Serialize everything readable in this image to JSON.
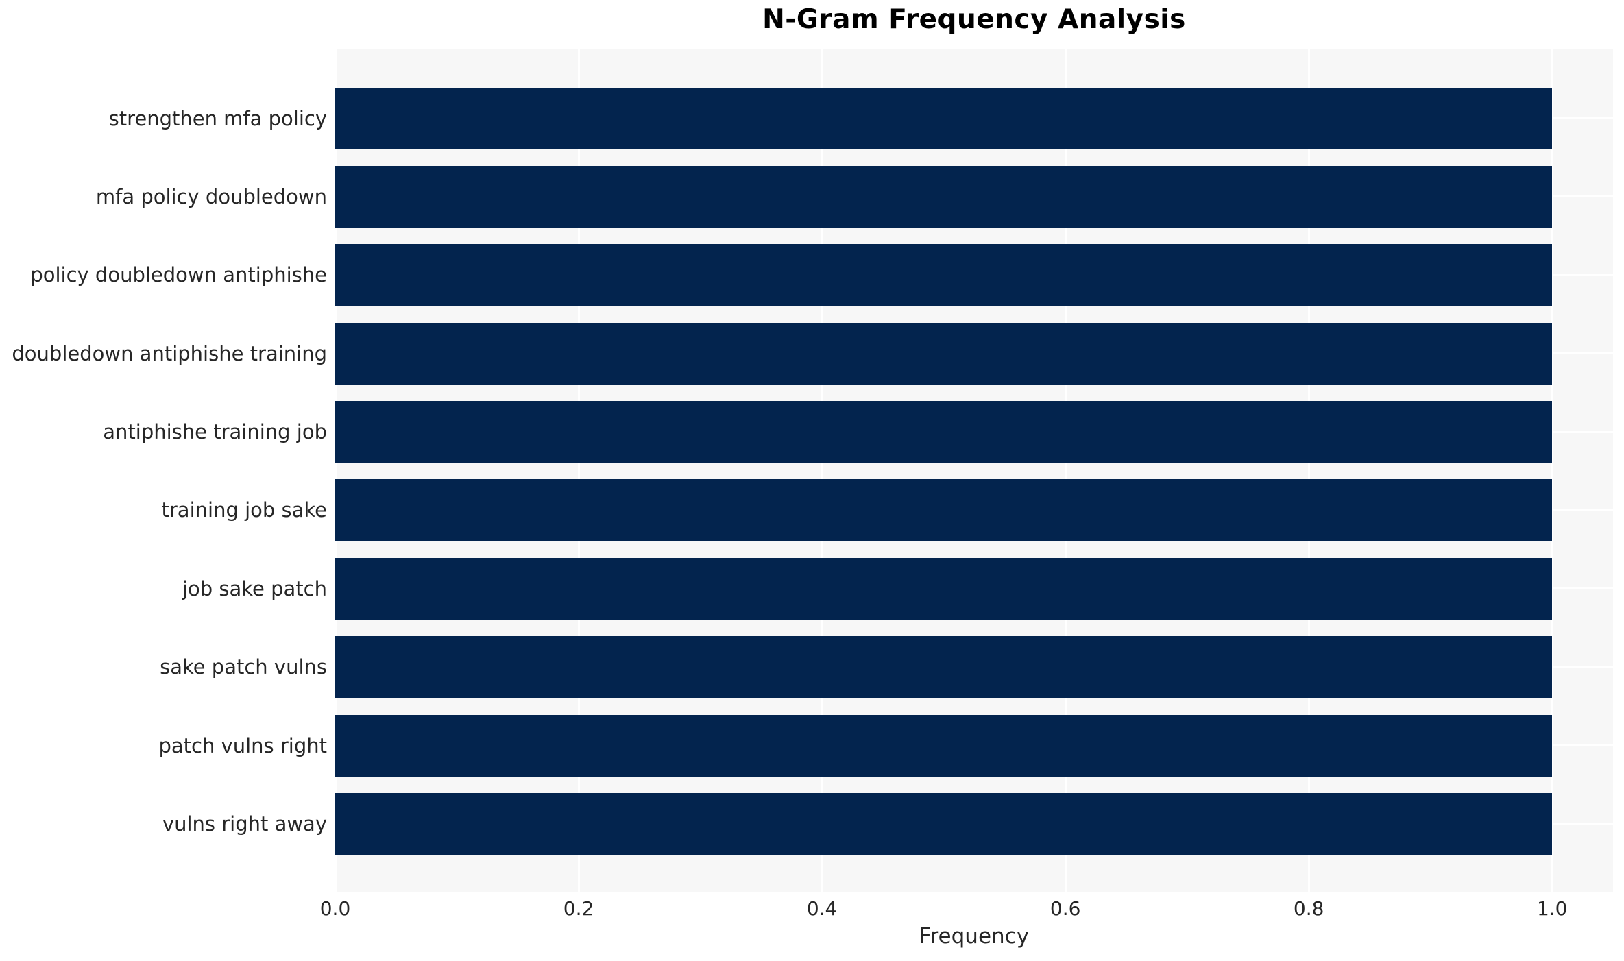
{
  "chart_data": {
    "type": "bar",
    "orientation": "horizontal",
    "title": "N-Gram Frequency Analysis",
    "xlabel": "Frequency",
    "ylabel": "",
    "categories": [
      "strengthen mfa policy",
      "mfa policy doubledown",
      "policy doubledown antiphishe",
      "doubledown antiphishe training",
      "antiphishe training job",
      "training job sake",
      "job sake patch",
      "sake patch vulns",
      "patch vulns right",
      "vulns right away"
    ],
    "values": [
      1.0,
      1.0,
      1.0,
      1.0,
      1.0,
      1.0,
      1.0,
      1.0,
      1.0,
      1.0
    ],
    "xlim": [
      0,
      1.05
    ],
    "xticks": [
      0.0,
      0.2,
      0.4,
      0.6,
      0.8,
      1.0
    ],
    "xtick_labels": [
      "0.0",
      "0.2",
      "0.4",
      "0.6",
      "0.8",
      "1.0"
    ],
    "grid": true,
    "legend_position": "none",
    "colors": {
      "bar": "#03244e",
      "plot_background": "#f7f7f7",
      "gridline": "#ffffff",
      "text": "#262626",
      "title": "#000000",
      "page_background": "#ffffff"
    }
  }
}
